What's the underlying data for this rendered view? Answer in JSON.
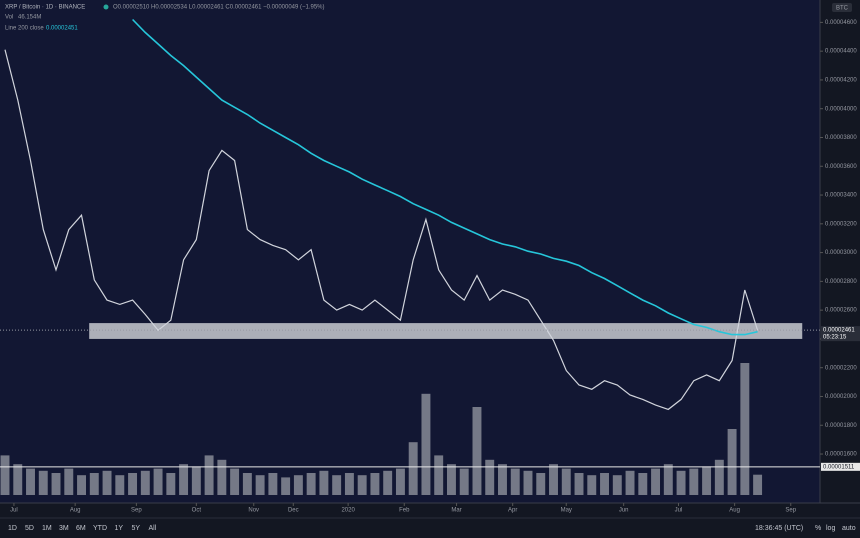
{
  "chart_data": {
    "type": "line",
    "symbol": "XRP / Bitcoin · 1D · BINANCE",
    "ohlc": "O0.00002510 H0.00002534 L0.00002461 C0.00002461 −0.00000049 (−1.95%)",
    "currency": "BTC",
    "xlim": [
      0,
      63.5
    ],
    "ylim": [
      1.35e-05,
      4.7e-05
    ],
    "yticks": [
      {
        "value": 1.6e-05,
        "label": "0.00001600"
      },
      {
        "value": 1.8e-05,
        "label": "0.00001800"
      },
      {
        "value": 2e-05,
        "label": "0.00002000"
      },
      {
        "value": 2.2e-05,
        "label": "0.00002200"
      },
      {
        "value": 2.4e-05,
        "label": "0.00002400"
      },
      {
        "value": 2.6e-05,
        "label": "0.00002600"
      },
      {
        "value": 2.8e-05,
        "label": "0.00002800"
      },
      {
        "value": 3e-05,
        "label": "0.00003000"
      },
      {
        "value": 3.2e-05,
        "label": "0.00003200"
      },
      {
        "value": 3.4e-05,
        "label": "0.00003400"
      },
      {
        "value": 3.6e-05,
        "label": "0.00003600"
      },
      {
        "value": 3.8e-05,
        "label": "0.00003800"
      },
      {
        "value": 4e-05,
        "label": "0.00004000"
      },
      {
        "value": 4.2e-05,
        "label": "0.00004200"
      },
      {
        "value": 4.4e-05,
        "label": "0.00004400"
      },
      {
        "value": 4.6e-05,
        "label": "0.00004600"
      }
    ],
    "xticks": [
      {
        "value": 0.7,
        "label": "Jul"
      },
      {
        "value": 5.5,
        "label": "Aug"
      },
      {
        "value": 10.3,
        "label": "Sep"
      },
      {
        "value": 15,
        "label": "Oct"
      },
      {
        "value": 19.5,
        "label": "Nov"
      },
      {
        "value": 22.6,
        "label": "Dec"
      },
      {
        "value": 26.9,
        "label": "2020"
      },
      {
        "value": 31.3,
        "label": "Feb"
      },
      {
        "value": 35.4,
        "label": "Mar"
      },
      {
        "value": 39.8,
        "label": "Apr"
      },
      {
        "value": 44,
        "label": "May"
      },
      {
        "value": 48.5,
        "label": "Jun"
      },
      {
        "value": 52.8,
        "label": "Jul"
      },
      {
        "value": 57.2,
        "label": "Aug"
      },
      {
        "value": 61.6,
        "label": "Sep"
      }
    ],
    "grid": false,
    "series": [
      {
        "name": "XRP / Bitcoin · 1D · BINANCE",
        "color": "#d1d4dc",
        "values": [
          4.41e-05,
          4.06e-05,
          3.64e-05,
          3.16e-05,
          2.88e-05,
          3.16e-05,
          3.26e-05,
          2.81e-05,
          2.67e-05,
          2.64e-05,
          2.67e-05,
          2.57e-05,
          2.46e-05,
          2.53e-05,
          2.95e-05,
          3.09e-05,
          3.57e-05,
          3.71e-05,
          3.64e-05,
          3.16e-05,
          3.09e-05,
          3.05e-05,
          3.02e-05,
          2.95e-05,
          3.02e-05,
          2.67e-05,
          2.6e-05,
          2.64e-05,
          2.6e-05,
          2.67e-05,
          2.6e-05,
          2.53e-05,
          2.95e-05,
          3.23e-05,
          2.88e-05,
          2.74e-05,
          2.67e-05,
          2.84e-05,
          2.67e-05,
          2.74e-05,
          2.71e-05,
          2.67e-05,
          2.53e-05,
          2.39e-05,
          2.18e-05,
          2.08e-05,
          2.05e-05,
          2.11e-05,
          2.08e-05,
          2.01e-05,
          1.98e-05,
          1.94e-05,
          1.91e-05,
          1.98e-05,
          2.11e-05,
          2.15e-05,
          2.11e-05,
          2.25e-05,
          2.74e-05,
          2.46e-05
        ]
      },
      {
        "name": "Line 200 close",
        "value_label": "0.00002451",
        "color": "#26c6da",
        "values": [
          null,
          null,
          null,
          null,
          null,
          null,
          null,
          null,
          null,
          null,
          4.62e-05,
          4.53e-05,
          4.45e-05,
          4.37e-05,
          4.3e-05,
          4.22e-05,
          4.14e-05,
          4.06e-05,
          4.01e-05,
          3.96e-05,
          3.9e-05,
          3.85e-05,
          3.8e-05,
          3.75e-05,
          3.69e-05,
          3.64e-05,
          3.6e-05,
          3.56e-05,
          3.51e-05,
          3.47e-05,
          3.43e-05,
          3.39e-05,
          3.34e-05,
          3.3e-05,
          3.26e-05,
          3.21e-05,
          3.17e-05,
          3.13e-05,
          3.09e-05,
          3.06e-05,
          3.04e-05,
          3.01e-05,
          2.99e-05,
          2.96e-05,
          2.94e-05,
          2.91e-05,
          2.86e-05,
          2.82e-05,
          2.77e-05,
          2.72e-05,
          2.67e-05,
          2.63e-05,
          2.58e-05,
          2.54e-05,
          2.5e-05,
          2.48e-05,
          2.45e-05,
          2.43e-05,
          2.43e-05,
          2.45e-05
        ]
      }
    ],
    "volume": {
      "name": "Vol",
      "value_label": "46.154M",
      "color": "#8f929c",
      "lim": [
        0,
        250
      ],
      "values": [
        90,
        70,
        60,
        55,
        50,
        60,
        45,
        50,
        55,
        45,
        50,
        55,
        60,
        50,
        70,
        65,
        90,
        80,
        60,
        50,
        45,
        50,
        40,
        45,
        50,
        55,
        45,
        50,
        45,
        50,
        55,
        60,
        120,
        230,
        90,
        70,
        60,
        200,
        80,
        70,
        60,
        55,
        50,
        70,
        60,
        50,
        45,
        50,
        45,
        55,
        50,
        60,
        70,
        55,
        60,
        65,
        80,
        150,
        300,
        46.154
      ]
    },
    "support_zone": {
      "x": [
        6.6,
        62.5
      ],
      "y": [
        2.4e-05,
        2.51e-05
      ]
    },
    "hline": {
      "value": 1.511e-05,
      "label": "0.00001511"
    },
    "last_price": {
      "value": 2.461e-05,
      "label": "0.00002461"
    },
    "countdown": "05:23:15"
  },
  "toolbar": {
    "ranges": [
      "1D",
      "5D",
      "1M",
      "3M",
      "6M",
      "YTD",
      "1Y",
      "5Y",
      "All"
    ],
    "time": "18:36:45 (UTC)",
    "options": [
      "%",
      "log",
      "auto"
    ]
  }
}
